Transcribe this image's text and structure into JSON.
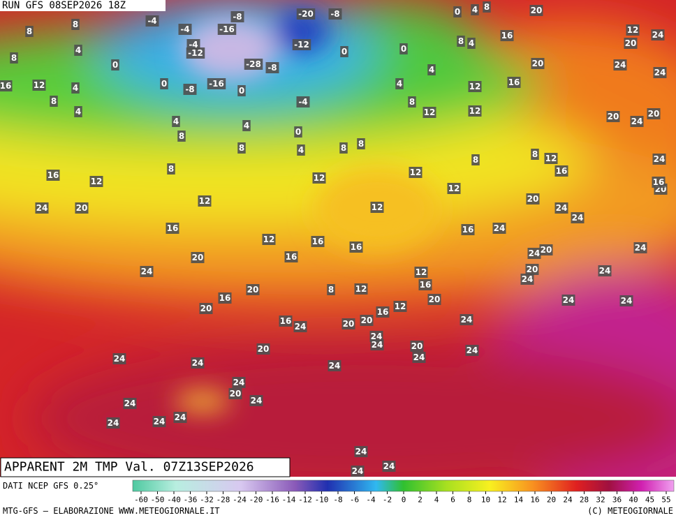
{
  "header": {
    "run": "RUN GFS 08SEP2026 18Z"
  },
  "map": {
    "labels": [
      8,
      8,
      4,
      8,
      0,
      16,
      12,
      4,
      8,
      4,
      -4,
      -4,
      -16,
      -8,
      -4,
      -12,
      -28,
      -8,
      0,
      -8,
      -16,
      0,
      -20,
      -8,
      -12,
      0,
      0,
      4,
      4,
      -4,
      0,
      4,
      4,
      8,
      8,
      4,
      8,
      8,
      8,
      12,
      12,
      12,
      16,
      16,
      20,
      20,
      24,
      24,
      12,
      20,
      0,
      4,
      8,
      8,
      4,
      20,
      24,
      20,
      8,
      12,
      16,
      8,
      16,
      12,
      8,
      12,
      12,
      12,
      12,
      12,
      24,
      20,
      16,
      12,
      16,
      16,
      16,
      20,
      24,
      16,
      24,
      20,
      24,
      24,
      24,
      24,
      20,
      20,
      24,
      24,
      12,
      16,
      8,
      12,
      20,
      16,
      20,
      12,
      16,
      20,
      24,
      24,
      16,
      24,
      20,
      20,
      24,
      24,
      24,
      20,
      24,
      24,
      20,
      24,
      24,
      24,
      24,
      20,
      24,
      24,
      24,
      24,
      24,
      24,
      24,
      24,
      24,
      20,
      16,
      24
    ]
  },
  "footer": {
    "title": "APPARENT 2M TMP Val. 07Z13SEP2026",
    "source": "DATI NCEP GFS 0.25°",
    "credit": "MTG-GFS — ELABORAZIONE WWW.METEOGIORNALE.IT",
    "copyright": "(C) METEOGIORNALE"
  },
  "legend": {
    "ticks": [
      -60,
      -50,
      -40,
      -36,
      -32,
      -28,
      -24,
      -20,
      -16,
      -14,
      -12,
      -10,
      -8,
      -6,
      -4,
      -2,
      0,
      2,
      4,
      6,
      8,
      10,
      12,
      14,
      16,
      20,
      24,
      28,
      32,
      36,
      40,
      45,
      55
    ]
  }
}
